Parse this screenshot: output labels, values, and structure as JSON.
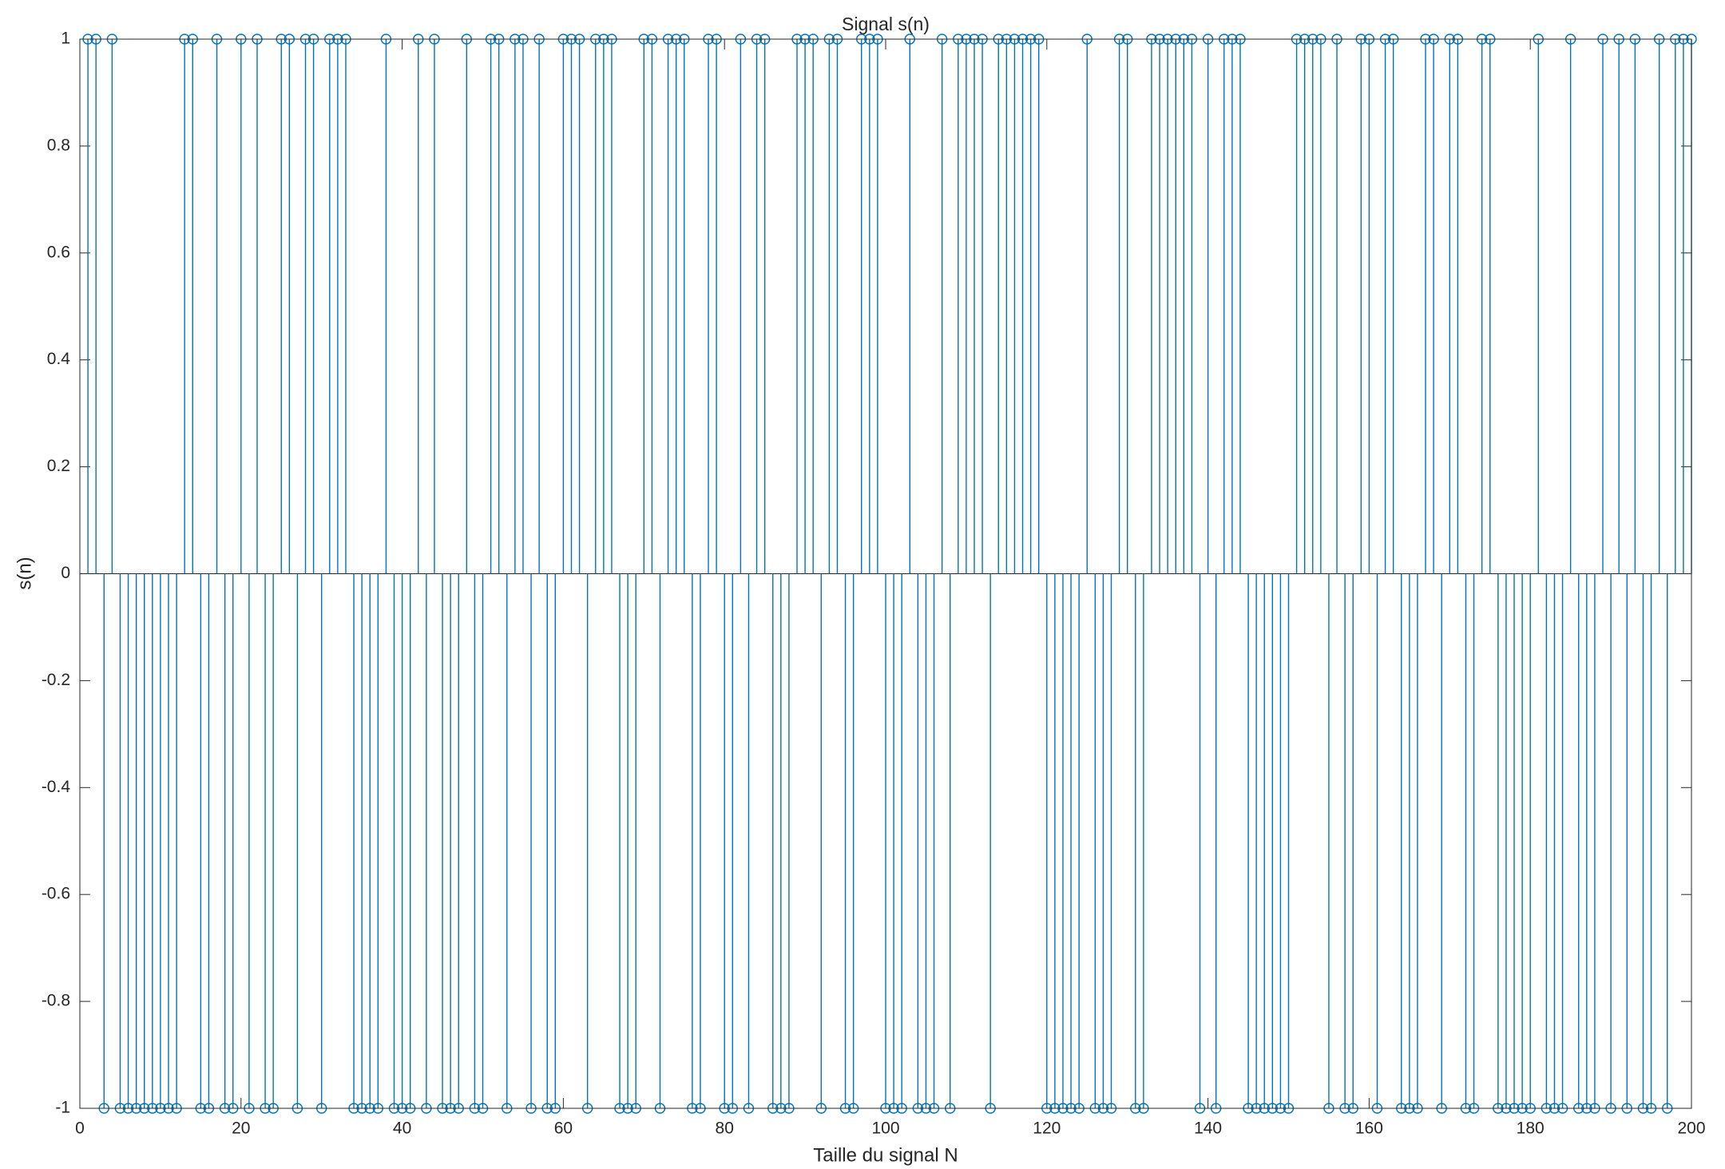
{
  "chart_data": {
    "type": "stem",
    "title": "Signal s(n)",
    "xlabel": "Taille du signal N",
    "ylabel": "s(n)",
    "x": [
      1,
      2,
      3,
      4,
      5,
      6,
      7,
      8,
      9,
      10,
      11,
      12,
      13,
      14,
      15,
      16,
      17,
      18,
      19,
      20,
      21,
      22,
      23,
      24,
      25,
      26,
      27,
      28,
      29,
      30,
      31,
      32,
      33,
      34,
      35,
      36,
      37,
      38,
      39,
      40,
      41,
      42,
      43,
      44,
      45,
      46,
      47,
      48,
      49,
      50,
      51,
      52,
      53,
      54,
      55,
      56,
      57,
      58,
      59,
      60,
      61,
      62,
      63,
      64,
      65,
      66,
      67,
      68,
      69,
      70,
      71,
      72,
      73,
      74,
      75,
      76,
      77,
      78,
      79,
      80,
      81,
      82,
      83,
      84,
      85,
      86,
      87,
      88,
      89,
      90,
      91,
      92,
      93,
      94,
      95,
      96,
      97,
      98,
      99,
      100,
      101,
      102,
      103,
      104,
      105,
      106,
      107,
      108,
      109,
      110,
      111,
      112,
      113,
      114,
      115,
      116,
      117,
      118,
      119,
      120,
      121,
      122,
      123,
      124,
      125,
      126,
      127,
      128,
      129,
      130,
      131,
      132,
      133,
      134,
      135,
      136,
      137,
      138,
      139,
      140,
      141,
      142,
      143,
      144,
      145,
      146,
      147,
      148,
      149,
      150,
      151,
      152,
      153,
      154,
      155,
      156,
      157,
      158,
      159,
      160,
      161,
      162,
      163,
      164,
      165,
      166,
      167,
      168,
      169,
      170,
      171,
      172,
      173,
      174,
      175,
      176,
      177,
      178,
      179,
      180,
      181,
      182,
      183,
      184,
      185,
      186,
      187,
      188,
      189,
      190,
      191,
      192,
      193,
      194,
      195,
      196,
      197,
      198,
      199,
      200
    ],
    "series": [
      {
        "name": "s(n)",
        "color": "#0072bd",
        "values": [
          1,
          1,
          -1,
          1,
          -1,
          -1,
          -1,
          -1,
          -1,
          -1,
          -1,
          -1,
          1,
          1,
          -1,
          -1,
          1,
          -1,
          -1,
          1,
          -1,
          1,
          -1,
          -1,
          1,
          1,
          -1,
          1,
          1,
          -1,
          1,
          1,
          1,
          -1,
          -1,
          -1,
          -1,
          1,
          -1,
          -1,
          -1,
          1,
          -1,
          1,
          -1,
          -1,
          -1,
          1,
          -1,
          -1,
          1,
          1,
          -1,
          1,
          1,
          -1,
          1,
          -1,
          -1,
          1,
          1,
          1,
          -1,
          1,
          1,
          1,
          -1,
          -1,
          -1,
          1,
          1,
          -1,
          1,
          1,
          1,
          -1,
          -1,
          1,
          1,
          -1,
          -1,
          1,
          -1,
          1,
          1,
          -1,
          -1,
          -1,
          1,
          1,
          1,
          -1,
          1,
          1,
          -1,
          -1,
          1,
          1,
          1,
          -1,
          -1,
          -1,
          1,
          -1,
          -1,
          -1,
          1,
          -1,
          1,
          1,
          1,
          1,
          -1,
          1,
          1,
          1,
          1,
          1,
          1,
          -1,
          -1,
          -1,
          -1,
          -1,
          1,
          -1,
          -1,
          -1,
          1,
          1,
          -1,
          -1,
          1,
          1,
          1,
          1,
          1,
          1,
          -1,
          1,
          -1,
          1,
          1,
          1,
          -1,
          -1,
          -1,
          -1,
          -1,
          -1,
          1,
          1,
          1,
          1,
          -1,
          1,
          -1,
          -1,
          1,
          1,
          -1,
          1,
          1,
          -1,
          -1,
          -1,
          1,
          1,
          -1,
          1,
          1,
          -1,
          -1,
          1,
          1,
          -1,
          -1,
          -1,
          -1,
          -1,
          1,
          -1,
          -1,
          -1,
          1,
          -1,
          -1,
          -1,
          1,
          -1,
          1,
          -1,
          1,
          -1,
          -1,
          1,
          -1,
          1,
          1,
          1
        ]
      }
    ],
    "xlim": [
      0,
      200
    ],
    "xticks": [
      0,
      20,
      40,
      60,
      80,
      100,
      120,
      140,
      160,
      180,
      200
    ],
    "ylim": [
      -1,
      1
    ],
    "yticks": [
      -1,
      -0.8,
      -0.6,
      -0.4,
      -0.2,
      0,
      0.2,
      0.4,
      0.6,
      0.8,
      1
    ],
    "grid": false
  }
}
